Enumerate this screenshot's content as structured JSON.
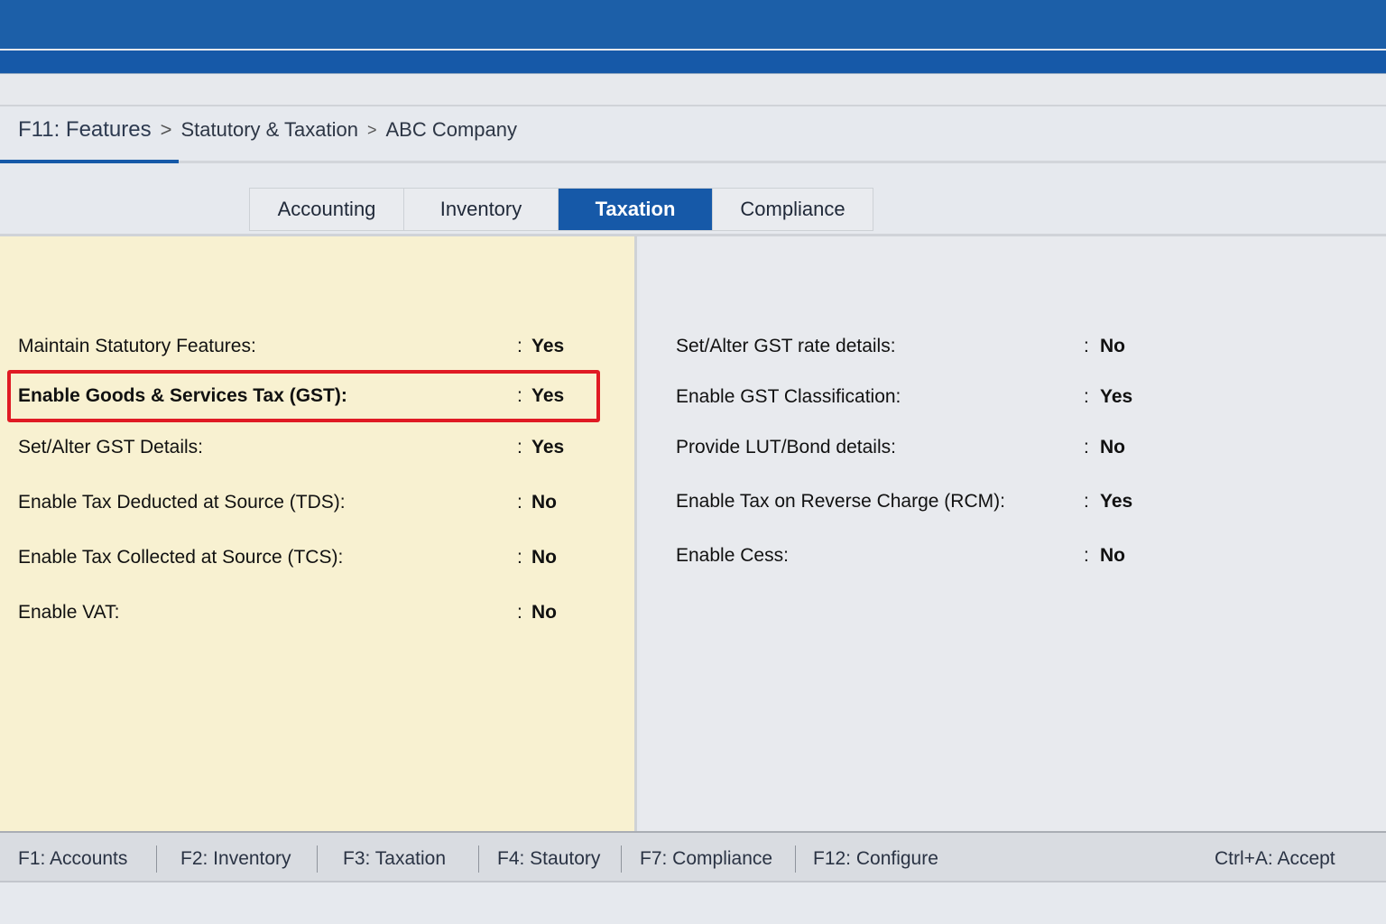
{
  "breadcrumb": {
    "items": [
      "F11: Features",
      "Statutory & Taxation",
      "ABC Company"
    ]
  },
  "tabs": [
    {
      "label": "Accounting",
      "active": false
    },
    {
      "label": "Inventory",
      "active": false
    },
    {
      "label": "Taxation",
      "active": true
    },
    {
      "label": "Compliance",
      "active": false
    }
  ],
  "left_fields": [
    {
      "label": "Maintain Statutory Features:",
      "value": "Yes"
    },
    {
      "label": "Enable Goods & Services Tax (GST):",
      "value": "Yes",
      "highlighted": true
    },
    {
      "label": "Set/Alter GST Details:",
      "value": "Yes"
    },
    {
      "label": "Enable Tax Deducted at Source (TDS):",
      "value": "No"
    },
    {
      "label": "Enable Tax Collected at Source (TCS):",
      "value": "No"
    },
    {
      "label": "Enable VAT:",
      "value": "No"
    }
  ],
  "right_fields": [
    {
      "label": "Set/Alter GST rate details:",
      "value": "No"
    },
    {
      "label": "Enable GST Classification:",
      "value": "Yes"
    },
    {
      "label": "Provide LUT/Bond details:",
      "value": "No"
    },
    {
      "label": "Enable Tax on Reverse Charge (RCM):",
      "value": "Yes"
    },
    {
      "label": "Enable Cess:",
      "value": "No"
    }
  ],
  "colon": ":",
  "footer": {
    "keys": [
      "F1: Accounts",
      "F2: Inventory",
      "F3: Taxation",
      "F4: Stautory",
      "F7: Compliance",
      "F12: Configure"
    ],
    "accept": "Ctrl+A: Accept"
  },
  "colors": {
    "accent": "#1659a8",
    "highlight_border": "#e01b24",
    "left_panel": "#f8f1d1"
  }
}
